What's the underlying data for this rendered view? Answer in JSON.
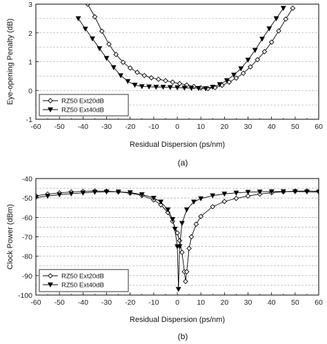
{
  "chart_data": [
    {
      "type": "line",
      "panel_label": "(a)",
      "xlabel": "Residual Dispersion (ps/nm)",
      "ylabel": "Eye-opening Penalty (dB)",
      "xlim": [
        -60,
        60
      ],
      "ylim": [
        -1,
        3
      ],
      "xticks": [
        -60,
        -50,
        -40,
        -30,
        -20,
        -10,
        0,
        10,
        20,
        30,
        40,
        50,
        60
      ],
      "yticks": [
        -1,
        0,
        1,
        2,
        3
      ],
      "grid": "horizontal dashed",
      "legend_position": "bottom-left",
      "series": [
        {
          "name": "RZ50 Ext20dB",
          "marker": "diamond-open",
          "x": [
            -38,
            -35,
            -32,
            -29,
            -26,
            -23,
            -20,
            -17,
            -14,
            -11,
            -8,
            -5,
            -2,
            1,
            4,
            7,
            10,
            13,
            16,
            19,
            22,
            25,
            28,
            31,
            34,
            37,
            40,
            43,
            46,
            49
          ],
          "y": [
            3.0,
            2.56,
            2.06,
            1.61,
            1.25,
            0.98,
            0.78,
            0.63,
            0.52,
            0.44,
            0.39,
            0.34,
            0.29,
            0.24,
            0.19,
            0.14,
            0.09,
            0.07,
            0.1,
            0.18,
            0.29,
            0.43,
            0.6,
            0.82,
            1.07,
            1.35,
            1.68,
            2.07,
            2.48,
            2.86
          ]
        },
        {
          "name": "RZ50 Ext40dB",
          "marker": "triangle-down-filled",
          "x": [
            -42,
            -39,
            -36,
            -33,
            -30,
            -27,
            -24,
            -21,
            -18,
            -15,
            -12,
            -9,
            -6,
            -3,
            0,
            3,
            6,
            9,
            12,
            15,
            18,
            21,
            24,
            27,
            30,
            33,
            36,
            39,
            42,
            45
          ],
          "y": [
            2.5,
            2.14,
            1.8,
            1.46,
            1.12,
            0.8,
            0.52,
            0.32,
            0.19,
            0.14,
            0.13,
            0.12,
            0.12,
            0.11,
            0.1,
            0.09,
            0.08,
            0.08,
            0.07,
            0.12,
            0.21,
            0.35,
            0.54,
            0.76,
            1.06,
            1.4,
            1.79,
            2.15,
            2.5,
            2.86
          ]
        }
      ]
    },
    {
      "type": "line",
      "panel_label": "(b)",
      "xlabel": "Residual Dispersion (ps/nm)",
      "ylabel": "Clock Power (dBm)",
      "xlim": [
        -60,
        60
      ],
      "ylim": [
        -100,
        -40
      ],
      "xticks": [
        -60,
        -50,
        -40,
        -30,
        -20,
        -10,
        0,
        10,
        20,
        30,
        40,
        50,
        60
      ],
      "yticks": [
        -100,
        -90,
        -80,
        -70,
        -60,
        -50,
        -40
      ],
      "grid": "horizontal dashed",
      "legend_position": "bottom-left",
      "series": [
        {
          "name": "RZ50 Ext20dB",
          "marker": "diamond-open",
          "x": [
            -60,
            -55,
            -50,
            -45,
            -40,
            -35,
            -30,
            -25,
            -20,
            -15,
            -10,
            -7,
            -4,
            -2,
            0,
            1,
            2,
            3,
            3.5,
            4,
            5,
            6,
            8,
            10,
            15,
            20,
            25,
            30,
            35,
            40,
            45,
            50,
            55,
            60
          ],
          "y": [
            -48.9,
            -48.0,
            -47.4,
            -46.9,
            -46.6,
            -46.4,
            -46.5,
            -46.8,
            -47.5,
            -48.7,
            -51.0,
            -53.5,
            -57.5,
            -62.0,
            -68.0,
            -72.0,
            -78.0,
            -88.0,
            -93.0,
            -88.0,
            -76.0,
            -70.0,
            -63.5,
            -59.5,
            -54.5,
            -51.8,
            -50.2,
            -49.0,
            -48.0,
            -47.3,
            -46.8,
            -46.5,
            -46.4,
            -46.5
          ]
        },
        {
          "name": "RZ50 Ext40dB",
          "marker": "triangle-down-filled",
          "x": [
            -60,
            -55,
            -50,
            -45,
            -40,
            -35,
            -30,
            -25,
            -20,
            -15,
            -10,
            -7,
            -4,
            -2,
            -1,
            0,
            0.5,
            1,
            2,
            4,
            7,
            10,
            15,
            20,
            25,
            30,
            35,
            40,
            45,
            50,
            55,
            60
          ],
          "y": [
            -49.8,
            -49.0,
            -48.3,
            -47.8,
            -47.4,
            -47.0,
            -46.8,
            -46.8,
            -47.2,
            -48.2,
            -50.0,
            -52.0,
            -56.0,
            -61.0,
            -66.0,
            -75.0,
            -97.0,
            -75.0,
            -63.0,
            -56.0,
            -52.0,
            -50.3,
            -48.8,
            -47.9,
            -47.4,
            -47.0,
            -46.8,
            -46.7,
            -46.7,
            -46.7,
            -46.8,
            -47.0
          ]
        }
      ]
    }
  ]
}
